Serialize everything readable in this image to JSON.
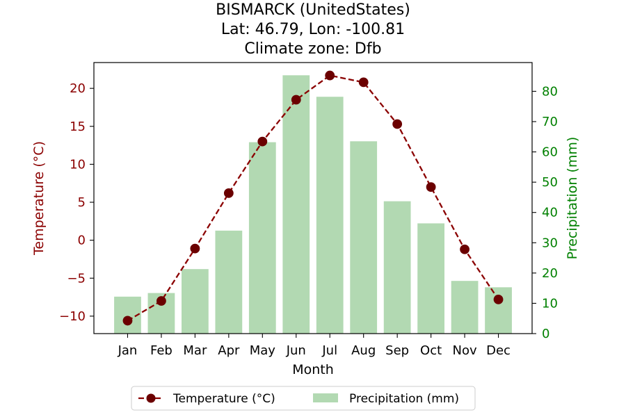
{
  "chart_data": {
    "type": "bar",
    "title_lines": [
      "BISMARCK (UnitedStates)",
      "Lat: 46.79, Lon: -100.81",
      "Climate zone: Dfb"
    ],
    "xlabel": "Month",
    "categories": [
      "Jan",
      "Feb",
      "Mar",
      "Apr",
      "May",
      "Jun",
      "Jul",
      "Aug",
      "Sep",
      "Oct",
      "Nov",
      "Dec"
    ],
    "y_left": {
      "label": "Temperature (°C)",
      "ylim": [
        -12.3,
        23.4
      ],
      "ticks": [
        -10,
        -5,
        0,
        5,
        10,
        15,
        20
      ],
      "tick_labels": [
        "−10",
        "−5",
        "0",
        "5",
        "10",
        "15",
        "20"
      ],
      "color": "#8b0000"
    },
    "y_right": {
      "label": "Precipitation (mm)",
      "ylim": [
        0,
        89.5
      ],
      "ticks": [
        0,
        10,
        20,
        30,
        40,
        50,
        60,
        70,
        80
      ],
      "tick_labels": [
        "0",
        "10",
        "20",
        "30",
        "40",
        "50",
        "60",
        "70",
        "80"
      ],
      "color": "#008000"
    },
    "series": [
      {
        "name": "Temperature (°C)",
        "kind": "line",
        "axis": "left",
        "color": "#8b0000",
        "values": [
          -10.6,
          -8.0,
          -1.1,
          6.2,
          13.0,
          18.5,
          21.7,
          20.8,
          15.3,
          7.0,
          -1.2,
          -7.8
        ]
      },
      {
        "name": "Precipitation (mm)",
        "kind": "bar",
        "axis": "right",
        "color": "#b2d9b2",
        "values": [
          12.2,
          13.4,
          21.3,
          34.0,
          63.2,
          85.3,
          78.2,
          63.5,
          43.7,
          36.4,
          17.4,
          15.3
        ]
      }
    ],
    "legend_position": "bottom-center",
    "grid": false
  }
}
